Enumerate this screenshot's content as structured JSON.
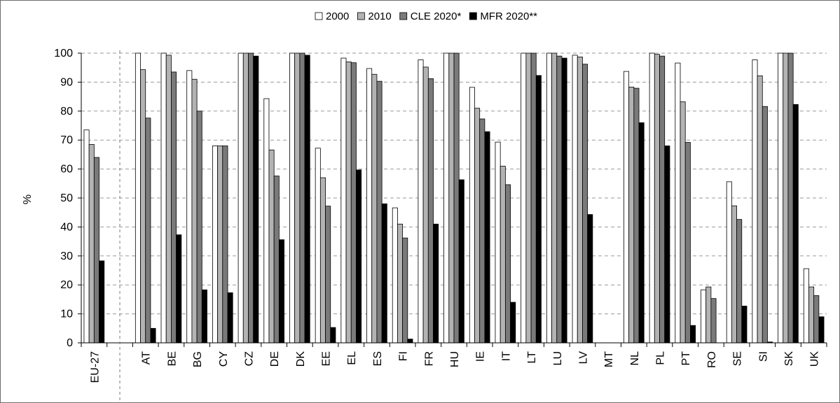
{
  "chart_data": {
    "type": "bar",
    "title": "",
    "xlabel": "",
    "ylabel": "%",
    "ylim": [
      0,
      100
    ],
    "yticks": [
      0,
      10,
      20,
      30,
      40,
      50,
      60,
      70,
      80,
      90,
      100
    ],
    "grid": "horizontal dashed",
    "legend_position": "top-center",
    "categories": [
      "EU-27",
      "",
      "AT",
      "BE",
      "BG",
      "CY",
      "CZ",
      "DE",
      "DK",
      "EE",
      "EL",
      "ES",
      "FI",
      "FR",
      "HU",
      "IE",
      "IT",
      "LT",
      "LU",
      "LV",
      "MT",
      "NL",
      "PL",
      "PT",
      "RO",
      "SE",
      "SI",
      "SK",
      "UK"
    ],
    "series": [
      {
        "name": "2000",
        "color": "#ffffff",
        "values": [
          73.5,
          null,
          100,
          100,
          94,
          68,
          100,
          84.3,
          100,
          67.2,
          98.3,
          94.7,
          46.6,
          97.7,
          100,
          88.2,
          69.3,
          100,
          100,
          99.3,
          0,
          93.7,
          100,
          96.6,
          18.3,
          55.6,
          97.7,
          100,
          25.6
        ]
      },
      {
        "name": "2010",
        "color": "#b3b3b3",
        "values": [
          68.5,
          null,
          94.3,
          99.3,
          91,
          68,
          100,
          66.6,
          100,
          57,
          97,
          92.7,
          41,
          95.2,
          100,
          81,
          61,
          100,
          100,
          98.7,
          0,
          88.3,
          99.6,
          83.2,
          19.3,
          47.3,
          92.2,
          100,
          19.3
        ]
      },
      {
        "name": "CLE 2020*",
        "color": "#7a7a7a",
        "values": [
          64,
          null,
          77.6,
          93.5,
          80,
          68,
          100,
          57.6,
          100,
          47.2,
          96.7,
          90.3,
          36.2,
          91.2,
          100,
          77.3,
          54.6,
          100,
          99,
          96.2,
          0,
          87.9,
          99,
          69.2,
          15.3,
          42.6,
          81.6,
          100,
          16.3
        ]
      },
      {
        "name": "MFR 2020**",
        "color": "#000000",
        "values": [
          28.3,
          null,
          5,
          37.3,
          18.3,
          17.3,
          99,
          35.6,
          99.3,
          5.3,
          59.7,
          48,
          1.3,
          41,
          56.3,
          72.9,
          14,
          92.3,
          98.3,
          44.3,
          0,
          76,
          68,
          6,
          0,
          12.7,
          0.3,
          82.3,
          9
        ]
      }
    ]
  }
}
